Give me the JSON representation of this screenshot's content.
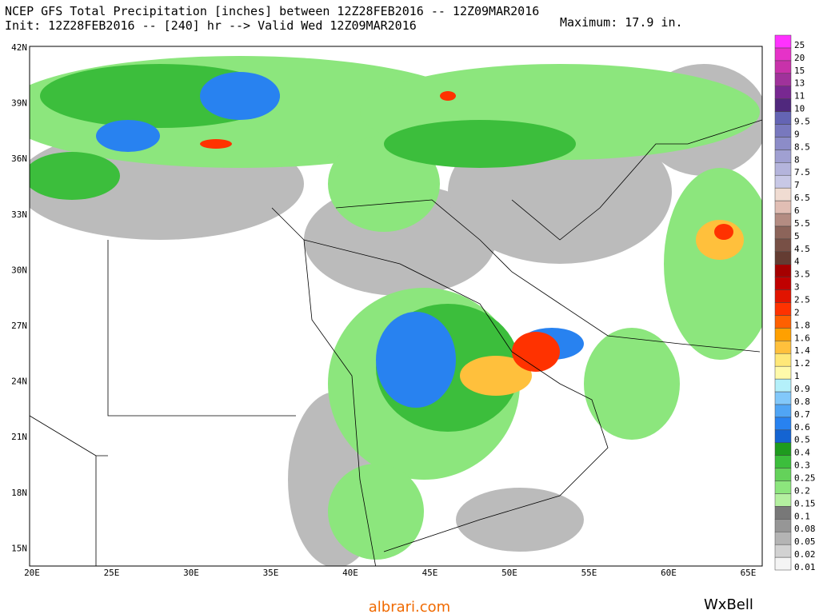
{
  "header": {
    "line1": "NCEP GFS Total Precipitation [inches] between 12Z28FEB2016 -- 12Z09MAR2016",
    "line2": "Init: 12Z28FEB2016 -- [240] hr --> Valid Wed 12Z09MAR2016",
    "maximum": "Maximum: 17.9 in."
  },
  "map": {
    "lon_labels": [
      "20E",
      "25E",
      "30E",
      "35E",
      "40E",
      "45E",
      "50E",
      "55E",
      "60E",
      "65E"
    ],
    "lat_labels": [
      "42N",
      "39N",
      "36N",
      "33N",
      "30N",
      "27N",
      "24N",
      "21N",
      "18N",
      "15N"
    ]
  },
  "legend": [
    {
      "label": 0.01,
      "color": "#f4f4f4"
    },
    {
      "label": 0.02,
      "color": "#d2d2d2"
    },
    {
      "label": 0.05,
      "color": "#b4b4b4"
    },
    {
      "label": 0.08,
      "color": "#969696"
    },
    {
      "label": 0.1,
      "color": "#787878"
    },
    {
      "label": 0.15,
      "color": "#b4f0a0"
    },
    {
      "label": 0.2,
      "color": "#8ce67d"
    },
    {
      "label": 0.25,
      "color": "#64d25a"
    },
    {
      "label": 0.3,
      "color": "#3cbe3c"
    },
    {
      "label": 0.4,
      "color": "#1e9b1e"
    },
    {
      "label": 0.5,
      "color": "#1464d2"
    },
    {
      "label": 0.6,
      "color": "#2882f0"
    },
    {
      "label": 0.7,
      "color": "#50a5f5"
    },
    {
      "label": 0.8,
      "color": "#82c8fa"
    },
    {
      "label": 0.9,
      "color": "#b4f0fa"
    },
    {
      "label": 1,
      "color": "#fffaaa"
    },
    {
      "label": 1.2,
      "color": "#ffe878"
    },
    {
      "label": 1.4,
      "color": "#ffc03c"
    },
    {
      "label": 1.6,
      "color": "#ffa000"
    },
    {
      "label": 1.8,
      "color": "#ff6000"
    },
    {
      "label": 2,
      "color": "#ff3200"
    },
    {
      "label": 2.5,
      "color": "#e11400"
    },
    {
      "label": 3,
      "color": "#c00000"
    },
    {
      "label": 3.5,
      "color": "#a50000"
    },
    {
      "label": 4,
      "color": "#643c32"
    },
    {
      "label": 4.5,
      "color": "#785046"
    },
    {
      "label": 5,
      "color": "#8c645a"
    },
    {
      "label": 5.5,
      "color": "#b48c82"
    },
    {
      "label": 6,
      "color": "#e1beb4"
    },
    {
      "label": 6.5,
      "color": "#f0dcd2"
    },
    {
      "label": 7,
      "color": "#c8c8e6"
    },
    {
      "label": 7.5,
      "color": "#b4b4dc"
    },
    {
      "label": 8,
      "color": "#a0a0d2"
    },
    {
      "label": 8.5,
      "color": "#8c8cc8"
    },
    {
      "label": 9,
      "color": "#7878be"
    },
    {
      "label": 9.5,
      "color": "#6464b4"
    },
    {
      "label": 10,
      "color": "#50287d"
    },
    {
      "label": 11,
      "color": "#782891"
    },
    {
      "label": 13,
      "color": "#a0329b"
    },
    {
      "label": 15,
      "color": "#c832aa"
    },
    {
      "label": 20,
      "color": "#e632c8"
    },
    {
      "label": 25,
      "color": "#ff32ff"
    }
  ],
  "footer": {
    "site": "albrari.com",
    "brand": "WxBell"
  }
}
